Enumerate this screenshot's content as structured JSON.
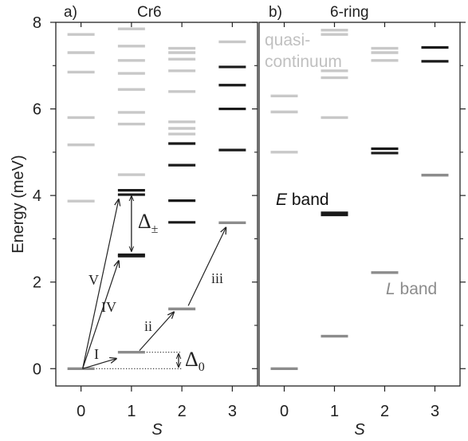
{
  "chart_data": [
    {
      "type": "scatter",
      "panel_label": "a)",
      "title": "Cr6",
      "xlabel": "S",
      "ylabel": "Energy (meV)",
      "x_ticks": [
        "0",
        "1",
        "2",
        "3"
      ],
      "y_ticks": [
        "0",
        "2",
        "4",
        "6",
        "8"
      ],
      "xlim": [
        -0.5,
        3.5
      ],
      "ylim": [
        -0.4,
        8.0
      ],
      "levels": [
        {
          "S": 0,
          "E": 0.0,
          "shade": "mid"
        },
        {
          "S": 0,
          "E": 3.87,
          "shade": "light"
        },
        {
          "S": 0,
          "E": 5.17,
          "shade": "light"
        },
        {
          "S": 0,
          "E": 5.8,
          "shade": "light"
        },
        {
          "S": 0,
          "E": 6.85,
          "shade": "light"
        },
        {
          "S": 0,
          "E": 7.3,
          "shade": "light"
        },
        {
          "S": 0,
          "E": 7.72,
          "shade": "light"
        },
        {
          "S": 1,
          "E": 0.38,
          "shade": "mid"
        },
        {
          "S": 1,
          "E": 2.6,
          "shade": "dark"
        },
        {
          "S": 1,
          "E": 2.63,
          "shade": "dark"
        },
        {
          "S": 1,
          "E": 4.02,
          "shade": "dark"
        },
        {
          "S": 1,
          "E": 4.12,
          "shade": "dark"
        },
        {
          "S": 1,
          "E": 4.48,
          "shade": "light"
        },
        {
          "S": 1,
          "E": 5.65,
          "shade": "light"
        },
        {
          "S": 1,
          "E": 5.92,
          "shade": "light"
        },
        {
          "S": 1,
          "E": 6.45,
          "shade": "light"
        },
        {
          "S": 1,
          "E": 6.82,
          "shade": "light"
        },
        {
          "S": 1,
          "E": 7.12,
          "shade": "light"
        },
        {
          "S": 1,
          "E": 7.45,
          "shade": "light"
        },
        {
          "S": 1,
          "E": 7.85,
          "shade": "light"
        },
        {
          "S": 2,
          "E": 1.38,
          "shade": "mid"
        },
        {
          "S": 2,
          "E": 3.38,
          "shade": "dark"
        },
        {
          "S": 2,
          "E": 3.88,
          "shade": "dark"
        },
        {
          "S": 2,
          "E": 4.7,
          "shade": "dark"
        },
        {
          "S": 2,
          "E": 5.2,
          "shade": "dark"
        },
        {
          "S": 2,
          "E": 5.42,
          "shade": "light"
        },
        {
          "S": 2,
          "E": 5.55,
          "shade": "light"
        },
        {
          "S": 2,
          "E": 5.7,
          "shade": "light"
        },
        {
          "S": 2,
          "E": 6.4,
          "shade": "light"
        },
        {
          "S": 2,
          "E": 6.88,
          "shade": "light"
        },
        {
          "S": 2,
          "E": 7.15,
          "shade": "light"
        },
        {
          "S": 2,
          "E": 7.3,
          "shade": "light"
        },
        {
          "S": 2,
          "E": 7.4,
          "shade": "light"
        },
        {
          "S": 3,
          "E": 3.37,
          "shade": "mid"
        },
        {
          "S": 3,
          "E": 5.05,
          "shade": "dark"
        },
        {
          "S": 3,
          "E": 6.0,
          "shade": "dark"
        },
        {
          "S": 3,
          "E": 6.55,
          "shade": "dark"
        },
        {
          "S": 3,
          "E": 6.97,
          "shade": "dark"
        },
        {
          "S": 3,
          "E": 7.55,
          "shade": "light"
        }
      ],
      "transitions": [
        {
          "label": "I",
          "from": [
            0,
            0.0
          ],
          "to": [
            1,
            0.38
          ]
        },
        {
          "label": "IV",
          "from": [
            0,
            0.0
          ],
          "to": [
            1,
            2.6
          ]
        },
        {
          "label": "V",
          "from": [
            0,
            0.0
          ],
          "to": [
            1,
            4.02
          ]
        },
        {
          "label": "ii",
          "from": [
            1,
            0.38
          ],
          "to": [
            2,
            1.38
          ]
        },
        {
          "label": "iii",
          "from": [
            2,
            1.38
          ],
          "to": [
            3,
            3.37
          ]
        }
      ],
      "annotations": {
        "delta_pm": {
          "symbol": "Δ",
          "subscript": "±",
          "S": 1,
          "E_low": 2.62,
          "E_high": 4.06
        },
        "delta_0": {
          "symbol": "Δ",
          "subscript": "0",
          "E_low": 0.0,
          "E_high": 0.38
        }
      }
    },
    {
      "type": "scatter",
      "panel_label": "b)",
      "title": "6-ring",
      "xlabel": "S",
      "x_ticks": [
        "0",
        "1",
        "2",
        "3"
      ],
      "xlim": [
        -0.5,
        3.5
      ],
      "ylim": [
        -0.4,
        8.0
      ],
      "levels": [
        {
          "S": 0,
          "E": 0.0,
          "shade": "mid"
        },
        {
          "S": 0,
          "E": 5.0,
          "shade": "light"
        },
        {
          "S": 0,
          "E": 5.93,
          "shade": "light"
        },
        {
          "S": 0,
          "E": 6.3,
          "shade": "light"
        },
        {
          "S": 1,
          "E": 0.75,
          "shade": "mid"
        },
        {
          "S": 1,
          "E": 3.55,
          "shade": "dark"
        },
        {
          "S": 1,
          "E": 3.6,
          "shade": "dark"
        },
        {
          "S": 1,
          "E": 5.8,
          "shade": "light"
        },
        {
          "S": 1,
          "E": 6.72,
          "shade": "light"
        },
        {
          "S": 1,
          "E": 6.88,
          "shade": "light"
        },
        {
          "S": 1,
          "E": 7.72,
          "shade": "light"
        },
        {
          "S": 1,
          "E": 7.82,
          "shade": "light"
        },
        {
          "S": 2,
          "E": 2.22,
          "shade": "mid"
        },
        {
          "S": 2,
          "E": 4.98,
          "shade": "dark"
        },
        {
          "S": 2,
          "E": 5.08,
          "shade": "dark"
        },
        {
          "S": 2,
          "E": 7.12,
          "shade": "light"
        },
        {
          "S": 2,
          "E": 7.3,
          "shade": "light"
        },
        {
          "S": 2,
          "E": 7.4,
          "shade": "light"
        },
        {
          "S": 3,
          "E": 4.47,
          "shade": "mid"
        },
        {
          "S": 3,
          "E": 7.1,
          "shade": "dark"
        },
        {
          "S": 3,
          "E": 7.42,
          "shade": "dark"
        }
      ],
      "band_labels": {
        "quasi_line1": "quasi-",
        "quasi_line2": "continuum",
        "e_band_letter": "E",
        "e_band_word": " band",
        "l_band_letter": "L",
        "l_band_word": " band"
      }
    }
  ],
  "colors": {
    "light": "#c8c8c8",
    "mid": "#8c8c8c",
    "dark": "#1a1a1a",
    "axis": "#222222"
  }
}
